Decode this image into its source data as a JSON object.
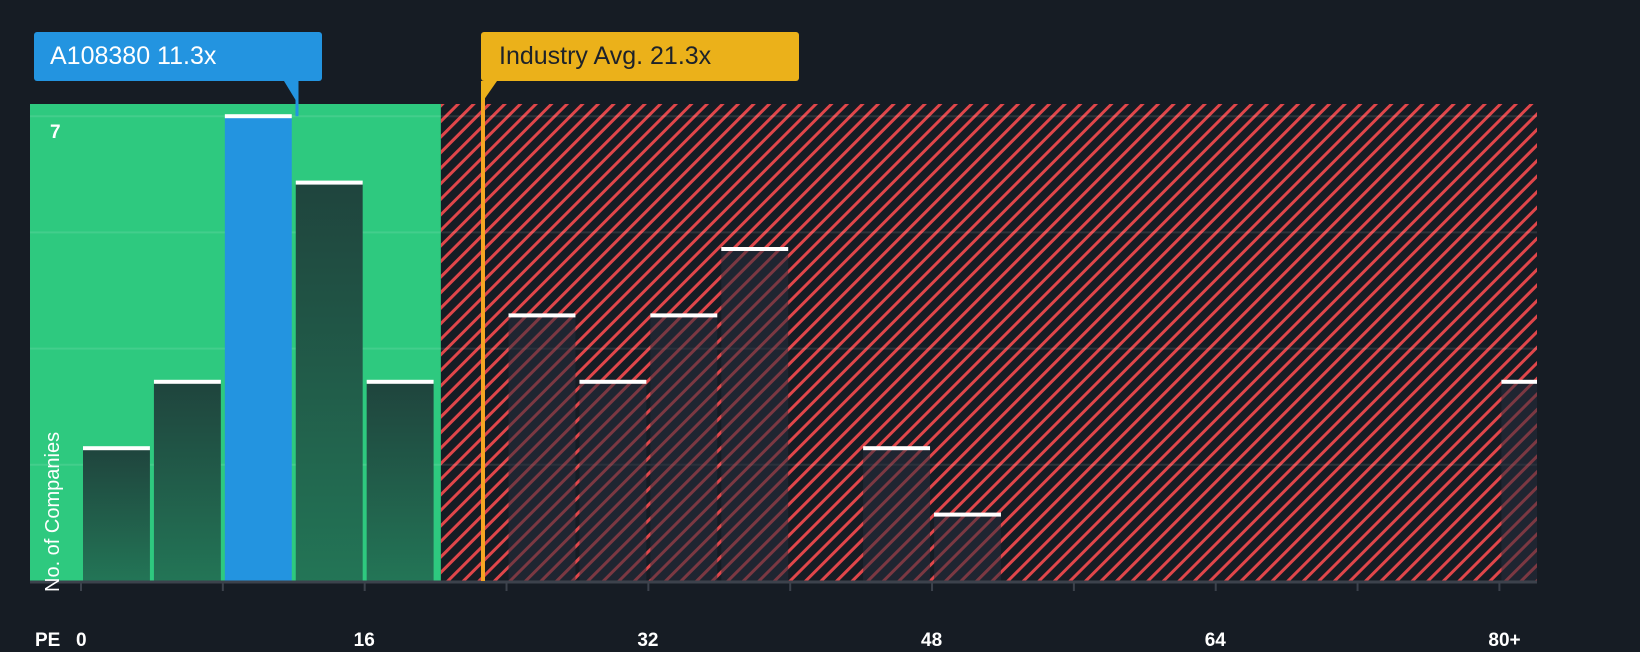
{
  "chart_data": {
    "type": "bar",
    "title": "",
    "xlabel": "PE",
    "ylabel": "No. of Companies",
    "x_tick_labels": [
      "0",
      "16",
      "32",
      "48",
      "64",
      "80+"
    ],
    "y_tick_labels": [
      "7"
    ],
    "ylim": [
      0,
      7
    ],
    "xlim": [
      0,
      82
    ],
    "grid": true,
    "bin_width": 4,
    "bins": [
      {
        "from": 0,
        "to": 4,
        "count": 2,
        "highlight": false
      },
      {
        "from": 4,
        "to": 8,
        "count": 3,
        "highlight": false
      },
      {
        "from": 8,
        "to": 12,
        "count": 7,
        "highlight": true
      },
      {
        "from": 12,
        "to": 16,
        "count": 6,
        "highlight": false
      },
      {
        "from": 16,
        "to": 20,
        "count": 3,
        "highlight": false
      },
      {
        "from": 24,
        "to": 28,
        "count": 4,
        "highlight": false
      },
      {
        "from": 28,
        "to": 32,
        "count": 3,
        "highlight": false
      },
      {
        "from": 32,
        "to": 36,
        "count": 4,
        "highlight": false
      },
      {
        "from": 36,
        "to": 40,
        "count": 5,
        "highlight": false
      },
      {
        "from": 44,
        "to": 48,
        "count": 2,
        "highlight": false
      },
      {
        "from": 48,
        "to": 52,
        "count": 1,
        "highlight": false
      },
      {
        "from": 80,
        "to": 82,
        "count": 3,
        "highlight": false,
        "label": "80+"
      }
    ],
    "categories": [
      "0-4",
      "4-8",
      "8-12",
      "12-16",
      "16-20",
      "24-28",
      "28-32",
      "32-36",
      "36-40",
      "44-48",
      "48-52",
      "80+"
    ],
    "values": [
      2,
      3,
      7,
      6,
      3,
      4,
      3,
      4,
      5,
      2,
      1,
      3
    ],
    "annotations": [
      {
        "label": "A108380 11.3x",
        "value": 11.3,
        "color": "#2394e0"
      },
      {
        "label": "Industry Avg. 21.3x",
        "value": 21.3,
        "color": "#ebb11a"
      }
    ],
    "regions": [
      {
        "name": "undervalued",
        "from": 0,
        "to": 20.3,
        "color": "#2ec97f"
      },
      {
        "name": "overvalued",
        "from": 20.3,
        "to": 82,
        "pattern": "red-diagonal-hatch",
        "color": "#e0464a"
      }
    ]
  },
  "tooltips": {
    "company": "A108380 11.3x",
    "industry": "Industry Avg. 21.3x"
  },
  "axis": {
    "x_title": "PE",
    "y_title": "No. of Companies",
    "y_max_label": "7"
  },
  "colors": {
    "background": "#161c24",
    "green_region": "#2ec97f",
    "bar_dark": "#214b3f",
    "highlight_bar": "#2394e0",
    "industry_line": "#f5a623",
    "hatch": "#e0464a"
  }
}
